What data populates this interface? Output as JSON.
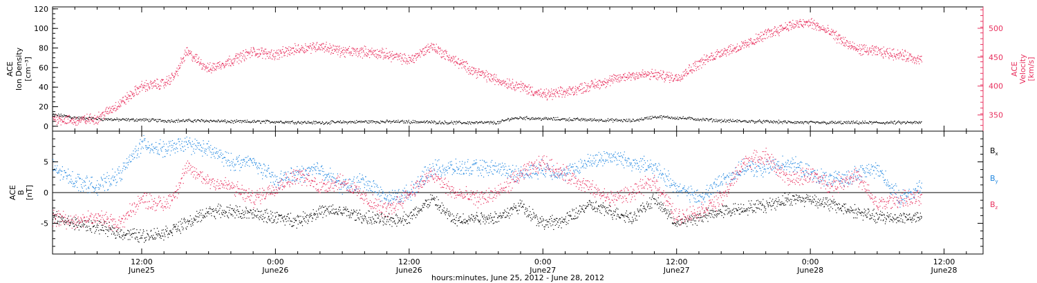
{
  "colors": {
    "black": "#000000",
    "red": "#e8305e",
    "blue": "#1f86e0"
  },
  "xlabel": "hours:minutes, June 25, 2012 - June 28, 2012",
  "x_ticks": [
    {
      "hour": 12,
      "time": "12:00",
      "date": "June25"
    },
    {
      "hour": 24,
      "time": "0:00",
      "date": "June26"
    },
    {
      "hour": 36,
      "time": "12:00",
      "date": "June26"
    },
    {
      "hour": 48,
      "time": "0:00",
      "date": "June27"
    },
    {
      "hour": 60,
      "time": "12:00",
      "date": "June27"
    },
    {
      "hour": 72,
      "time": "0:00",
      "date": "June28"
    },
    {
      "hour": 84,
      "time": "12:00",
      "date": "June28"
    }
  ],
  "chart_data": [
    {
      "type": "scatter",
      "x_unit": "hours since June 25 00:00",
      "xlim": [
        4,
        87.5
      ],
      "ylabel_left": [
        "ACE",
        "Ion Density",
        "[cm⁻³]"
      ],
      "ylim_left": [
        -5,
        122
      ],
      "yticks_left": [
        0,
        20,
        40,
        60,
        80,
        100,
        120
      ],
      "ylabel_right": [
        "ACE",
        "Velocity",
        "[km/s]"
      ],
      "ylim_right": [
        322,
        537
      ],
      "yticks_right": [
        350,
        400,
        450,
        500
      ],
      "series": [
        {
          "axis": "left",
          "color": "#000000",
          "x": [
            4,
            5,
            6,
            8,
            10,
            12,
            14,
            16,
            18,
            20,
            24,
            28,
            32,
            36,
            40,
            44,
            45,
            46,
            48,
            52,
            56,
            58,
            60,
            64,
            68,
            72,
            76,
            80,
            82
          ],
          "y": [
            12,
            11,
            9,
            8,
            7,
            7,
            6,
            6,
            6,
            5,
            5,
            4,
            5,
            5,
            4,
            4,
            8,
            9,
            8,
            7,
            6,
            10,
            9,
            6,
            5,
            4,
            4,
            4,
            4
          ]
        },
        {
          "axis": "right",
          "color": "#e8305e",
          "x": [
            4,
            6,
            8,
            10,
            12,
            14,
            15,
            16,
            17,
            18,
            20,
            22,
            24,
            26,
            28,
            30,
            32,
            34,
            36,
            38,
            40,
            42,
            44,
            46,
            48,
            50,
            52,
            54,
            56,
            58,
            60,
            62,
            64,
            66,
            68,
            70,
            72,
            74,
            76,
            78,
            80,
            82
          ],
          "y": [
            345,
            340,
            345,
            370,
            400,
            405,
            420,
            460,
            445,
            430,
            445,
            460,
            455,
            465,
            470,
            460,
            460,
            455,
            445,
            470,
            445,
            425,
            410,
            400,
            385,
            390,
            400,
            410,
            420,
            420,
            415,
            440,
            460,
            470,
            490,
            505,
            510,
            490,
            465,
            460,
            455,
            445
          ]
        }
      ]
    },
    {
      "type": "scatter",
      "x_unit": "hours since June 25 00:00",
      "xlim": [
        4,
        87.5
      ],
      "ylabel_left": [
        "ACE",
        "B",
        "[nT]"
      ],
      "ylim_left": [
        -10,
        10
      ],
      "yticks_left": [
        -5,
        0,
        5
      ],
      "zero_line": true,
      "legend_position": "right",
      "series": [
        {
          "name": "Bx",
          "color": "#000000",
          "x": [
            4,
            6,
            8,
            10,
            12,
            14,
            16,
            18,
            20,
            22,
            24,
            26,
            28,
            30,
            32,
            34,
            36,
            38,
            40,
            42,
            44,
            46,
            48,
            50,
            52,
            54,
            56,
            58,
            60,
            62,
            64,
            66,
            68,
            70,
            72,
            74,
            76,
            78,
            80,
            82
          ],
          "y": [
            -4,
            -5,
            -5.5,
            -6.5,
            -7,
            -6.5,
            -5,
            -3,
            -3,
            -3.5,
            -4,
            -4.5,
            -3,
            -3,
            -4,
            -4.5,
            -4,
            -1,
            -4.5,
            -4,
            -4,
            -2,
            -5,
            -4.5,
            -2,
            -3,
            -4,
            -1,
            -5,
            -4,
            -3,
            -2.5,
            -2,
            -1,
            -1,
            -2,
            -3,
            -4,
            -4,
            -4
          ]
        },
        {
          "name": "By",
          "color": "#1f86e0",
          "x": [
            4,
            6,
            8,
            10,
            12,
            14,
            16,
            18,
            20,
            22,
            24,
            26,
            28,
            30,
            32,
            34,
            36,
            38,
            40,
            42,
            44,
            46,
            48,
            50,
            52,
            54,
            56,
            58,
            60,
            62,
            64,
            66,
            68,
            70,
            72,
            74,
            76,
            78,
            80,
            82
          ],
          "y": [
            4,
            2,
            1,
            3,
            8,
            7,
            8,
            7,
            5,
            5,
            2,
            3,
            4,
            1,
            2,
            -1,
            0,
            4,
            4,
            4,
            4,
            3,
            4,
            3,
            5,
            6,
            5,
            4,
            1,
            -1,
            2,
            4,
            4,
            5,
            3,
            2,
            3,
            4,
            -1,
            1
          ]
        },
        {
          "name": "Bz",
          "color": "#e8305e",
          "x": [
            4,
            6,
            8,
            10,
            12,
            14,
            15,
            16,
            18,
            20,
            22,
            24,
            26,
            28,
            30,
            32,
            34,
            36,
            38,
            40,
            42,
            44,
            46,
            48,
            50,
            52,
            54,
            56,
            58,
            60,
            62,
            64,
            66,
            68,
            70,
            72,
            74,
            76,
            78,
            80,
            82
          ],
          "y": [
            -4,
            -4.5,
            -4,
            -5,
            -1,
            -2,
            0,
            4,
            2,
            1,
            -1,
            1,
            3,
            1,
            2,
            -1,
            -3,
            0,
            3,
            0,
            -1,
            0,
            3,
            5,
            3,
            1,
            -1,
            0,
            2,
            -4,
            -3,
            -1,
            5,
            6,
            2,
            3,
            1,
            3,
            -2,
            -1,
            -1
          ]
        }
      ]
    }
  ]
}
